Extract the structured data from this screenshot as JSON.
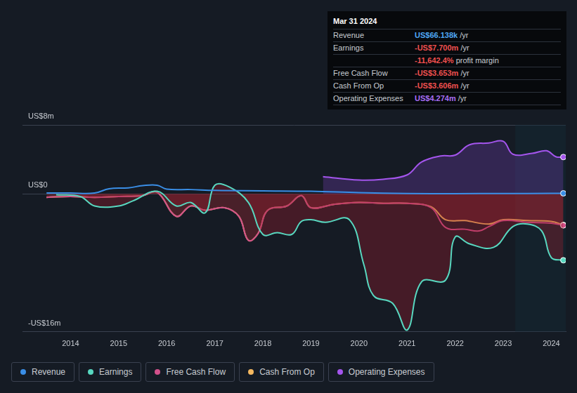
{
  "chart_data": {
    "type": "line",
    "xlim": [
      2013,
      2024.3
    ],
    "xticks": [
      2014,
      2015,
      2016,
      2017,
      2018,
      2019,
      2020,
      2021,
      2022,
      2023,
      2024
    ],
    "ylim": [
      -16,
      8
    ],
    "yticks": [
      {
        "value": 8,
        "label": "US$8m"
      },
      {
        "value": 0,
        "label": "US$0"
      },
      {
        "value": -16,
        "label": "-US$16m"
      }
    ],
    "grid": true,
    "summary": {
      "date": "Mar 31 2024",
      "rows": [
        {
          "label": "Revenue",
          "value": "US$66.138k",
          "unit": "/yr",
          "color": "#4ea8f5"
        },
        {
          "label": "Earnings",
          "value": "-US$7.700m",
          "unit": "/yr",
          "color": "#f0504f"
        },
        {
          "label": "Free Cash Flow",
          "value": "-US$3.653m",
          "unit": "/yr",
          "color": "#f0504f"
        },
        {
          "label": "Cash From Op",
          "value": "-US$3.606m",
          "unit": "/yr",
          "color": "#f0504f"
        },
        {
          "label": "Operating Expenses",
          "value": "US$4.274m",
          "unit": "/yr",
          "color": "#a86ef5"
        }
      ],
      "profit_margin": {
        "value": "-11,642.4%",
        "text": "profit margin",
        "color": "#f0504f"
      }
    },
    "series": [
      {
        "name": "Revenue",
        "color": "#3a8ee6",
        "x": [
          2013.5,
          2014,
          2014.5,
          2014.8,
          2015.2,
          2015.5,
          2015.8,
          2016,
          2016.5,
          2017,
          2018,
          2019,
          2020,
          2021,
          2022,
          2023,
          2024,
          2024.25
        ],
        "values": [
          0.1,
          0.1,
          0.1,
          0.6,
          0.7,
          0.95,
          1.0,
          0.55,
          0.5,
          0.4,
          0.35,
          0.3,
          0.15,
          0.05,
          0.03,
          0.04,
          0.06,
          0.066
        ]
      },
      {
        "name": "Earnings",
        "color": "#58d8c0",
        "x": [
          2013.7,
          2014.2,
          2014.5,
          2015,
          2015.3,
          2015.8,
          2016.2,
          2016.5,
          2016.8,
          2017,
          2017.3,
          2017.7,
          2018,
          2018.3,
          2018.6,
          2018.8,
          2019,
          2019.3,
          2019.8,
          2020.1,
          2020.3,
          2020.7,
          2021,
          2021.3,
          2021.8,
          2022,
          2022.3,
          2022.8,
          2023.2,
          2023.5,
          2023.8,
          2024,
          2024.25
        ],
        "values": [
          -0.1,
          -0.3,
          -1.4,
          -1.4,
          -0.8,
          0.3,
          -1.4,
          -1.0,
          -2.2,
          1.0,
          0.8,
          -1.0,
          -4.7,
          -4.5,
          -4.7,
          -3.2,
          -3.0,
          -3.3,
          -3.0,
          -8.2,
          -11.8,
          -12.7,
          -15.8,
          -10.2,
          -10.0,
          -5.0,
          -5.8,
          -6.2,
          -3.8,
          -3.5,
          -4.3,
          -7.4,
          -7.7
        ]
      },
      {
        "name": "Free Cash Flow",
        "color": "#d2508a",
        "x": [
          2013.5,
          2014,
          2014.5,
          2015,
          2015.5,
          2015.8,
          2016.2,
          2016.5,
          2016.8,
          2017.2,
          2017.5,
          2017.7,
          2017.9,
          2018.1,
          2018.5,
          2018.8,
          2019,
          2019.5,
          2020,
          2020.5,
          2021,
          2021.5,
          2021.8,
          2022.2,
          2022.5,
          2022.7,
          2023,
          2023.5,
          2024,
          2024.25
        ],
        "values": [
          -0.4,
          -0.3,
          -0.4,
          -0.3,
          -0.2,
          0.2,
          -2.6,
          -1.4,
          -1.9,
          -1.6,
          -2.6,
          -5.4,
          -4.6,
          -1.9,
          -1.4,
          -0.2,
          -1.6,
          -1.2,
          -1.0,
          -1.1,
          -1.1,
          -1.6,
          -3.9,
          -4.1,
          -4.3,
          -3.8,
          -3.1,
          -3.3,
          -3.4,
          -3.653
        ]
      },
      {
        "name": "Cash From Op",
        "color": "#f4b860",
        "x": [
          2013.5,
          2014,
          2014.5,
          2015,
          2015.5,
          2015.8,
          2016.2,
          2016.5,
          2016.8,
          2017.2,
          2017.5,
          2017.7,
          2017.9,
          2018.1,
          2018.5,
          2018.8,
          2019,
          2019.5,
          2020,
          2020.5,
          2021,
          2021.5,
          2021.8,
          2022.2,
          2022.7,
          2023,
          2023.5,
          2024,
          2024.25
        ],
        "values": [
          -0.4,
          -0.3,
          -0.4,
          -0.3,
          -0.2,
          0.2,
          -2.6,
          -1.4,
          -1.9,
          -1.6,
          -2.6,
          -5.4,
          -4.6,
          -1.9,
          -1.4,
          -0.2,
          -1.6,
          -1.2,
          -1.0,
          -1.1,
          -1.1,
          -1.5,
          -3.0,
          -3.1,
          -3.5,
          -3.0,
          -3.1,
          -3.2,
          -3.606
        ]
      },
      {
        "name": "Operating Expenses",
        "color": "#a455ed",
        "x": [
          2019.25,
          2020,
          2020.5,
          2021,
          2021.3,
          2021.7,
          2022,
          2022.3,
          2022.7,
          2023,
          2023.2,
          2023.6,
          2023.9,
          2024.1,
          2024.25
        ],
        "values": [
          2.0,
          1.6,
          1.7,
          2.2,
          3.7,
          4.4,
          4.5,
          5.7,
          5.9,
          6.1,
          4.6,
          4.7,
          5.0,
          4.3,
          4.274
        ]
      }
    ]
  }
}
